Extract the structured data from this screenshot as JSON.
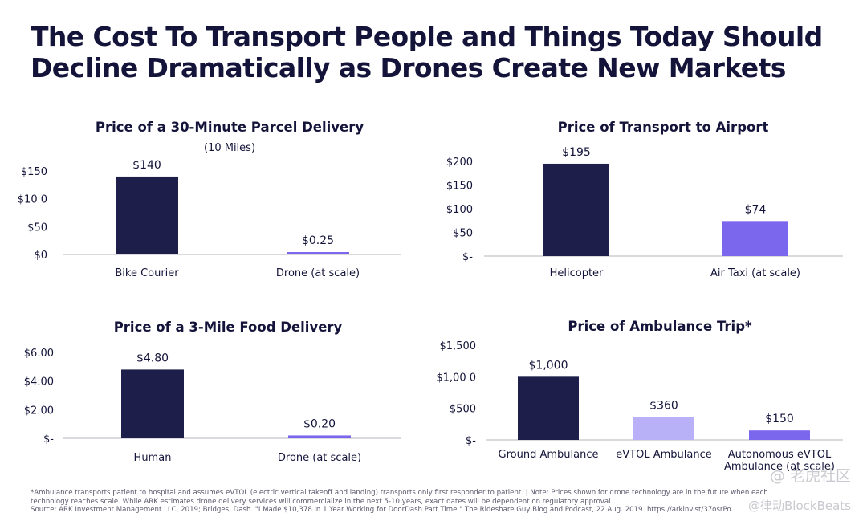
{
  "headline": {
    "line1": "The Cost To Transport People and Things Today Should",
    "line2": "Decline Dramatically as Drones Create New Markets"
  },
  "colors": {
    "dark": "#1d1f4a",
    "purple": "#7b67ee",
    "lavender": "#b8b1f7",
    "axis": "#b5b5bd",
    "text": "#14143a"
  },
  "chart_data": [
    {
      "type": "bar",
      "title": "Price of a 30-Minute Parcel Delivery",
      "subtitle": "(10 Miles)",
      "categories": [
        "Bike Courier",
        "Drone (at scale)"
      ],
      "values": [
        140,
        0.25
      ],
      "data_labels": [
        "$140",
        "$0.25"
      ],
      "y_ticks": [
        0,
        50,
        100,
        150
      ],
      "y_tick_labels": [
        "$0",
        "$50",
        "$10 0",
        "$150"
      ],
      "ylim": [
        0,
        150
      ],
      "bar_colors": [
        "#1d1f4a",
        "#7b67ee"
      ]
    },
    {
      "type": "bar",
      "title": "Price of Transport to Airport",
      "categories": [
        "Helicopter",
        "Air Taxi (at scale)"
      ],
      "values": [
        195,
        74
      ],
      "data_labels": [
        "$195",
        "$74"
      ],
      "y_ticks": [
        0,
        50,
        100,
        150,
        200
      ],
      "y_tick_labels": [
        "$-",
        "$50",
        "$100",
        "$150",
        "$200"
      ],
      "ylim": [
        0,
        200
      ],
      "bar_colors": [
        "#1d1f4a",
        "#7b67ee"
      ]
    },
    {
      "type": "bar",
      "title": "Price of a 3-Mile Food Delivery",
      "categories": [
        "Human",
        "Drone (at scale)"
      ],
      "values": [
        4.8,
        0.2
      ],
      "data_labels": [
        "$4.80",
        "$0.20"
      ],
      "y_ticks": [
        0,
        2,
        4,
        6
      ],
      "y_tick_labels": [
        "$-",
        "$2.00",
        "$4.00",
        "$6.00"
      ],
      "ylim": [
        0,
        6
      ],
      "bar_colors": [
        "#1d1f4a",
        "#7b67ee"
      ]
    },
    {
      "type": "bar",
      "title": "Price of Ambulance Trip*",
      "categories": [
        "Ground Ambulance",
        "eVTOL Ambulance",
        "Autonomous eVTOL Ambulance (at scale)"
      ],
      "values": [
        1000,
        360,
        150
      ],
      "data_labels": [
        "$1,000",
        "$360",
        "$150"
      ],
      "y_ticks": [
        0,
        500,
        1000,
        1500
      ],
      "y_tick_labels": [
        "$-",
        "$500",
        "$1,00 0",
        "$1,500"
      ],
      "ylim": [
        0,
        1500
      ],
      "bar_colors": [
        "#1d1f4a",
        "#b8b1f7",
        "#7b67ee"
      ]
    }
  ],
  "footnote": {
    "line1": "*Ambulance transports patient to hospital and assumes eVTOL (electric vertical takeoff and landing) transports only first responder to patient.  |  Note: Prices shown for drone technology are in the future when each",
    "line2": "technology reaches scale. While ARK estimates drone delivery services will commercialize in the next 5-10 years, exact dates will be dependent on regulatory approval.",
    "line3": "Source: ARK Investment Management LLC, 2019; Bridges, Dash. \"I Made $10,378 in 1 Year Working for DoorDash Part Time.\" The Rideshare Guy Blog and Podcast, 22 Aug. 2019. https://arkinv.st/37osrPo."
  },
  "watermark": {
    "line1": "@ 老虎社区",
    "line2": "@律动BlockBeats"
  }
}
